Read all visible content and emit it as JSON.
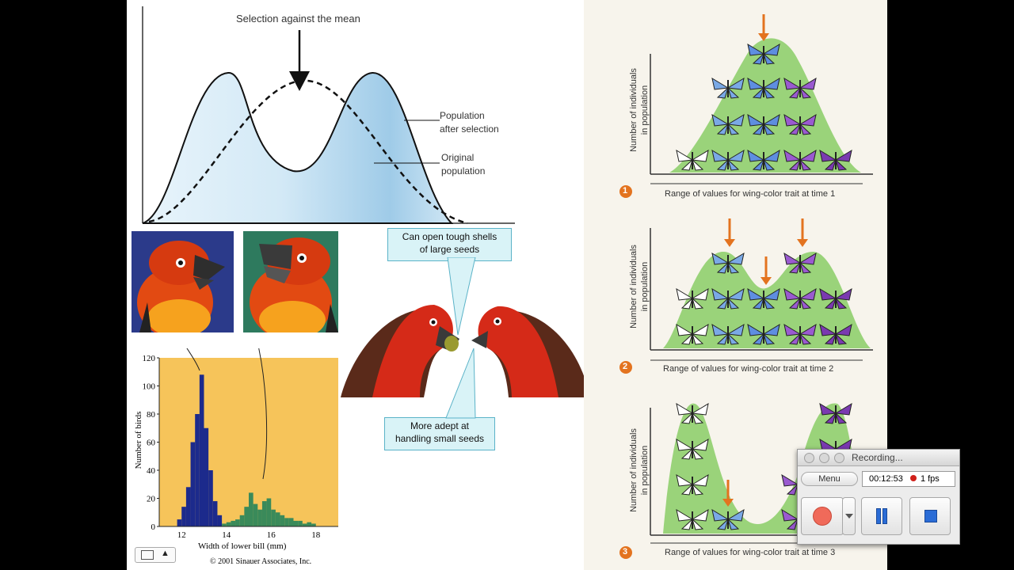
{
  "left_top": {
    "title": "Selection against the mean",
    "label_after_1": "Population",
    "label_after_2": "after selection",
    "label_orig_1": "Original",
    "label_orig_2": "population"
  },
  "callouts": {
    "top_1": "Can open tough shells",
    "top_2": "of large seeds",
    "bottom_1": "More adept at",
    "bottom_2": "handling small seeds"
  },
  "histogram": {
    "ylabel": "Number of birds",
    "xlabel": "Width of lower bill (mm)",
    "copyright": "© 2001 Sinauer Associates, Inc.",
    "yticks": [
      "0",
      "20",
      "40",
      "60",
      "80",
      "100",
      "120"
    ],
    "xticks": [
      "12",
      "14",
      "16",
      "18"
    ]
  },
  "chart_data": {
    "type": "bar",
    "xlabel": "Width of lower bill (mm)",
    "ylabel": "Number of birds",
    "ylim": [
      0,
      120
    ],
    "xlim": [
      11,
      19
    ],
    "series": [
      {
        "color": "#1c2a8c",
        "x": [
          11.9,
          12.1,
          12.3,
          12.5,
          12.7,
          12.9,
          13.1,
          13.3,
          13.5,
          13.7
        ],
        "values": [
          5,
          14,
          28,
          60,
          80,
          108,
          70,
          40,
          18,
          8
        ]
      },
      {
        "color": "#3a8a5a",
        "x": [
          13.9,
          14.1,
          14.3,
          14.5,
          14.7,
          14.9,
          15.1,
          15.3,
          15.5,
          15.7,
          15.9,
          16.1,
          16.3,
          16.5,
          16.7,
          16.9,
          17.1,
          17.3,
          17.5,
          17.7,
          17.9
        ],
        "values": [
          2,
          3,
          4,
          5,
          8,
          14,
          24,
          16,
          12,
          18,
          20,
          12,
          10,
          8,
          6,
          6,
          4,
          4,
          2,
          3,
          2
        ]
      }
    ]
  },
  "right_panels": {
    "ylabel_1": "Number of individuals",
    "ylabel_2": "in population",
    "xlabel_1": "Range of values for wing-color trait at time 1",
    "xlabel_2": "Range of values for wing-color trait at time 2",
    "xlabel_3": "Range of values for wing-color trait at time 3",
    "num_1": "1",
    "num_2": "2",
    "num_3": "3"
  },
  "recorder": {
    "title": "Recording...",
    "menu": "Menu",
    "time": "00:12:53",
    "fps": "1 fps"
  },
  "toolbar": {
    "up": "▲"
  },
  "colors": {
    "accent_orange": "#e3731f",
    "curve_fill": "#bfe0f2",
    "mound_green": "#9ad37a",
    "hist_bg": "#f6c45a"
  }
}
